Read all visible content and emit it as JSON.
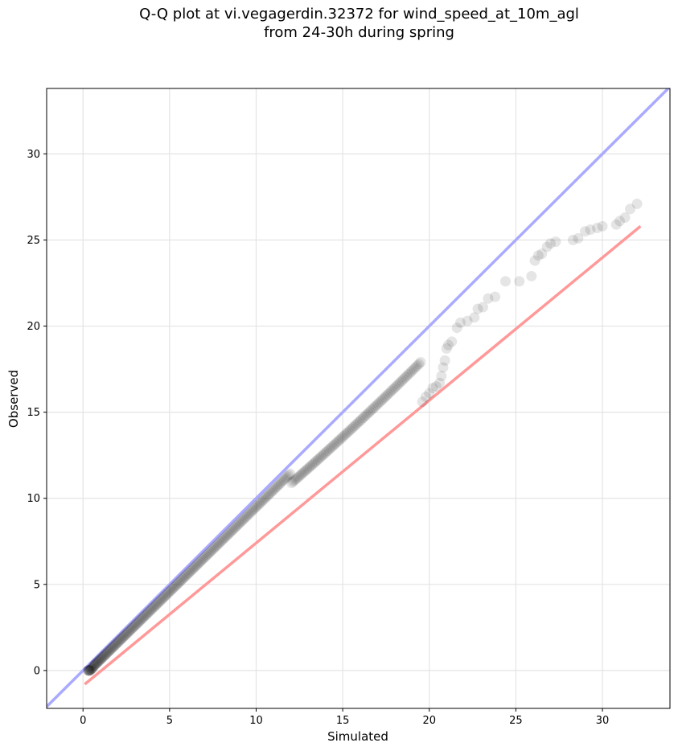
{
  "title": {
    "line1": "Q-Q plot at vi.vegagerdin.32372 for wind_speed_at_10m_agl",
    "line2": "from 24-30h during spring"
  },
  "chart_data": {
    "type": "scatter",
    "title": "Q-Q plot at vi.vegagerdin.32372 for wind_speed_at_10m_agl from 24-30h during spring",
    "xlabel": "Simulated",
    "ylabel": "Observed",
    "xlim": [
      -2.1,
      33.9
    ],
    "ylim": [
      -2.2,
      33.8
    ],
    "xticks": [
      0,
      5,
      10,
      15,
      20,
      25,
      30
    ],
    "yticks": [
      0,
      5,
      10,
      15,
      20,
      25,
      30
    ],
    "grid": true,
    "reference_line": {
      "color": "#aaaaff",
      "from": [
        -2.1,
        -2.1
      ],
      "to": [
        33.9,
        33.9
      ]
    },
    "fit_line": {
      "color": "#ff9999",
      "from": [
        0.1,
        -0.8
      ],
      "to": [
        32.2,
        25.8
      ]
    },
    "point_color": "#000000",
    "points_dense_x": [
      0.3,
      19.5
    ],
    "points_tail": [
      [
        19.6,
        15.6
      ],
      [
        19.8,
        15.9
      ],
      [
        20.0,
        16.1
      ],
      [
        20.2,
        16.4
      ],
      [
        20.4,
        16.5
      ],
      [
        20.6,
        16.7
      ],
      [
        20.7,
        17.1
      ],
      [
        20.8,
        17.6
      ],
      [
        20.9,
        18.0
      ],
      [
        21.0,
        18.7
      ],
      [
        21.1,
        18.9
      ],
      [
        21.3,
        19.1
      ],
      [
        21.6,
        19.9
      ],
      [
        21.8,
        20.2
      ],
      [
        22.2,
        20.3
      ],
      [
        22.6,
        20.5
      ],
      [
        22.8,
        21.0
      ],
      [
        23.1,
        21.1
      ],
      [
        23.4,
        21.6
      ],
      [
        23.8,
        21.7
      ],
      [
        24.4,
        22.6
      ],
      [
        25.2,
        22.6
      ],
      [
        25.9,
        22.9
      ],
      [
        26.1,
        23.8
      ],
      [
        26.3,
        24.1
      ],
      [
        26.5,
        24.2
      ],
      [
        26.8,
        24.6
      ],
      [
        27.0,
        24.8
      ],
      [
        27.3,
        24.9
      ],
      [
        28.3,
        25.0
      ],
      [
        28.6,
        25.1
      ],
      [
        29.0,
        25.5
      ],
      [
        29.3,
        25.6
      ],
      [
        29.7,
        25.7
      ],
      [
        30.0,
        25.8
      ],
      [
        30.8,
        25.9
      ],
      [
        31.0,
        26.1
      ],
      [
        31.3,
        26.3
      ],
      [
        31.6,
        26.8
      ],
      [
        32.0,
        27.1
      ]
    ]
  }
}
